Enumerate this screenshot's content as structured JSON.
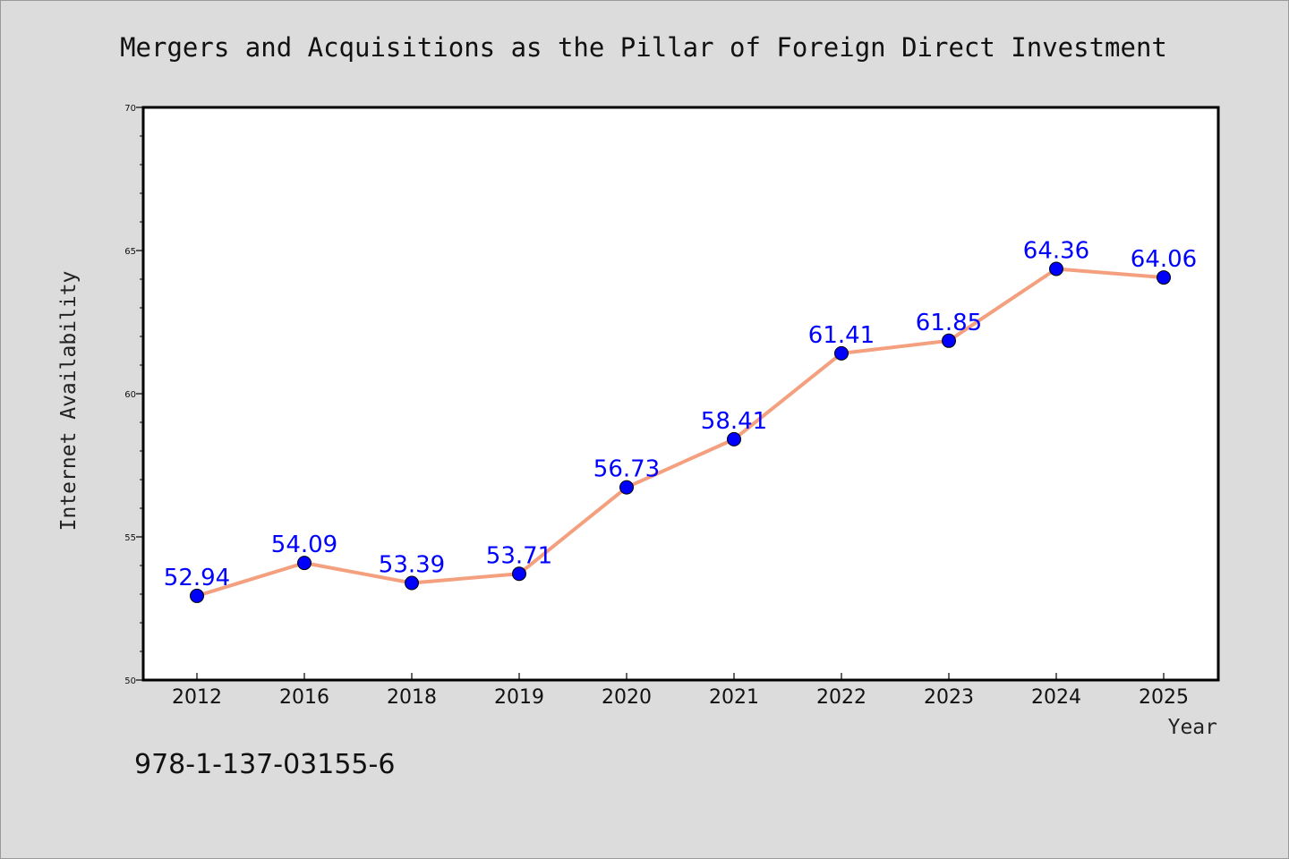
{
  "chart_data": {
    "type": "line",
    "title": "Mergers and Acquisitions as the Pillar of Foreign Direct Investment",
    "xlabel": "Year",
    "ylabel": "Internet Availability",
    "categories": [
      "2012",
      "2016",
      "2018",
      "2019",
      "2020",
      "2021",
      "2022",
      "2023",
      "2024",
      "2025"
    ],
    "series": [
      {
        "values": [
          52.94,
          54.09,
          53.39,
          53.71,
          56.73,
          58.41,
          61.41,
          61.85,
          64.36,
          64.06
        ],
        "labels": [
          "52.94",
          "54.09",
          "53.39",
          "53.71",
          "56.73",
          "58.41",
          "61.41",
          "61.85",
          "64.36",
          "64.06"
        ],
        "line_color": "#f4a07f",
        "marker_color": "#0000ff"
      }
    ],
    "ylim": [
      50,
      70
    ],
    "yticks": [
      "50",
      "55",
      "60",
      "65",
      "70"
    ],
    "grid": false,
    "legend": "none"
  },
  "footnote": "978-1-137-03155-6",
  "colors": {
    "background": "#dcdcdc",
    "plot_background": "#ffffff",
    "data_label": "#0000ff"
  }
}
